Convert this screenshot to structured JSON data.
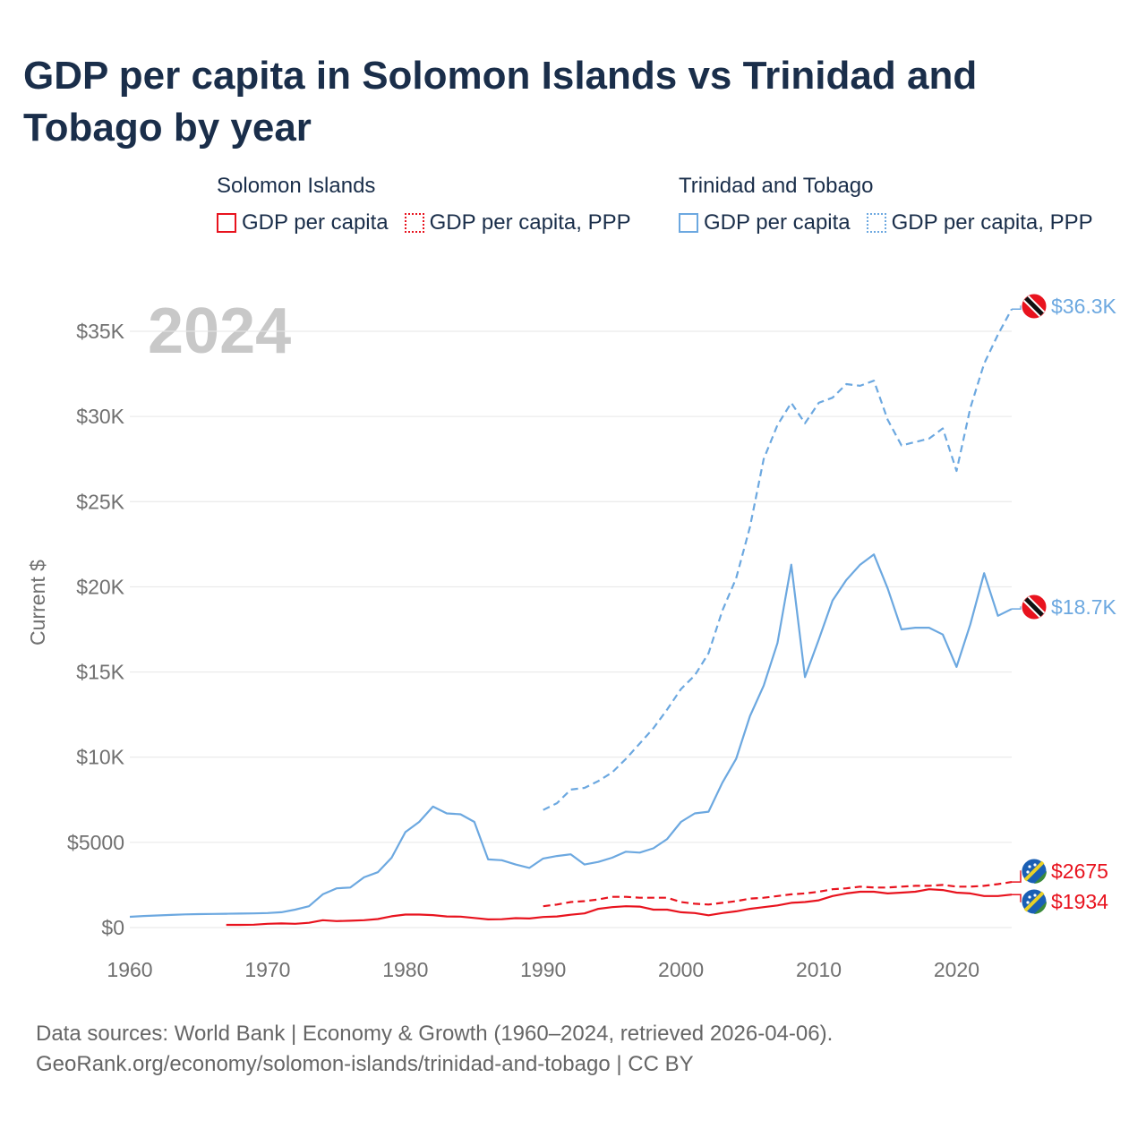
{
  "title": "GDP per capita in Solomon Islands vs Trinidad and Tobago by year",
  "legend": {
    "groups": [
      {
        "name": "Solomon Islands",
        "items": [
          "GDP per capita",
          "GDP per capita, PPP"
        ]
      },
      {
        "name": "Trinidad and Tobago",
        "items": [
          "GDP per capita",
          "GDP per capita, PPP"
        ]
      }
    ]
  },
  "footer": {
    "line1": "Data sources: World Bank | Economy & Growth (1960–2024, retrieved 2026-04-06).",
    "line2": "GeoRank.org/economy/solomon-islands/trinidad-and-tobago | CC BY"
  },
  "colors": {
    "solomon": "#e8131e",
    "trinidad": "#6ca8e0",
    "grid": "#e6e6e6",
    "axis_text": "#707070",
    "year_watermark": "#c8c8c8"
  },
  "chart_data": {
    "type": "line",
    "year_label": "2024",
    "ylabel": "Current $",
    "xlim": [
      1960,
      2024
    ],
    "ylim": [
      0,
      36000
    ],
    "x_ticks": [
      "1960",
      "1970",
      "1980",
      "1990",
      "2000",
      "2010",
      "2020"
    ],
    "y_ticks": [
      {
        "value": 0,
        "label": "$0"
      },
      {
        "value": 5000,
        "label": "$5000"
      },
      {
        "value": 10000,
        "label": "$10K"
      },
      {
        "value": 15000,
        "label": "$15K"
      },
      {
        "value": 20000,
        "label": "$20K"
      },
      {
        "value": 25000,
        "label": "$25K"
      },
      {
        "value": 30000,
        "label": "$30K"
      },
      {
        "value": 35000,
        "label": "$35K"
      }
    ],
    "series": [
      {
        "name": "Trinidad and Tobago GDP per capita, PPP",
        "country": "trinidad",
        "dashed": true,
        "end_label": "$36.3K",
        "x": [
          1990,
          1991,
          1992,
          1993,
          1994,
          1995,
          1996,
          1997,
          1998,
          1999,
          2000,
          2001,
          2002,
          2003,
          2004,
          2005,
          2006,
          2007,
          2008,
          2009,
          2010,
          2011,
          2012,
          2013,
          2014,
          2015,
          2016,
          2017,
          2018,
          2019,
          2020,
          2021,
          2022,
          2023,
          2024
        ],
        "y": [
          6900,
          7300,
          8100,
          8200,
          8600,
          9100,
          9900,
          10800,
          11700,
          12800,
          14000,
          14800,
          16100,
          18600,
          20500,
          23500,
          27500,
          29500,
          30800,
          29600,
          30800,
          31100,
          31900,
          31800,
          32100,
          29800,
          28300,
          28500,
          28700,
          29300,
          26800,
          30500,
          33100,
          34800,
          36300
        ]
      },
      {
        "name": "Trinidad and Tobago GDP per capita",
        "country": "trinidad",
        "dashed": false,
        "end_label": "$18.7K",
        "x": [
          1960,
          1961,
          1962,
          1963,
          1964,
          1965,
          1966,
          1967,
          1968,
          1969,
          1970,
          1971,
          1972,
          1973,
          1974,
          1975,
          1976,
          1977,
          1978,
          1979,
          1980,
          1981,
          1982,
          1983,
          1984,
          1985,
          1986,
          1987,
          1988,
          1989,
          1990,
          1991,
          1992,
          1993,
          1994,
          1995,
          1996,
          1997,
          1998,
          1999,
          2000,
          2001,
          2002,
          2003,
          2004,
          2005,
          2006,
          2007,
          2008,
          2009,
          2010,
          2011,
          2012,
          2013,
          2014,
          2015,
          2016,
          2017,
          2018,
          2019,
          2020,
          2021,
          2022,
          2023,
          2024
        ],
        "y": [
          630,
          680,
          710,
          740,
          770,
          790,
          800,
          810,
          820,
          830,
          850,
          900,
          1050,
          1250,
          1950,
          2300,
          2350,
          2950,
          3250,
          4100,
          5600,
          6200,
          7100,
          6700,
          6650,
          6200,
          4000,
          3950,
          3700,
          3500,
          4050,
          4200,
          4300,
          3700,
          3850,
          4100,
          4450,
          4400,
          4650,
          5200,
          6200,
          6700,
          6800,
          8500,
          9900,
          12400,
          14200,
          16700,
          21300,
          14700,
          16900,
          19200,
          20400,
          21300,
          21900,
          19900,
          17500,
          17600,
          17600,
          17200,
          15300,
          17800,
          20800,
          18300,
          18700
        ]
      },
      {
        "name": "Solomon Islands GDP per capita, PPP",
        "country": "solomon",
        "dashed": true,
        "end_label": "$2675",
        "x": [
          1990,
          1991,
          1992,
          1993,
          1994,
          1995,
          1996,
          1997,
          1998,
          1999,
          2000,
          2001,
          2002,
          2003,
          2004,
          2005,
          2006,
          2007,
          2008,
          2009,
          2010,
          2011,
          2012,
          2013,
          2014,
          2015,
          2016,
          2017,
          2018,
          2019,
          2020,
          2021,
          2022,
          2023,
          2024
        ],
        "y": [
          1250,
          1350,
          1500,
          1550,
          1650,
          1800,
          1800,
          1750,
          1750,
          1750,
          1500,
          1400,
          1350,
          1450,
          1550,
          1700,
          1750,
          1850,
          1950,
          2000,
          2100,
          2250,
          2300,
          2400,
          2350,
          2350,
          2400,
          2450,
          2450,
          2500,
          2400,
          2400,
          2450,
          2550,
          2675
        ]
      },
      {
        "name": "Solomon Islands GDP per capita",
        "country": "solomon",
        "dashed": false,
        "end_label": "$1934",
        "x": [
          1967,
          1968,
          1969,
          1970,
          1971,
          1972,
          1973,
          1974,
          1975,
          1976,
          1977,
          1978,
          1979,
          1980,
          1981,
          1982,
          1983,
          1984,
          1985,
          1986,
          1987,
          1988,
          1989,
          1990,
          1991,
          1992,
          1993,
          1994,
          1995,
          1996,
          1997,
          1998,
          1999,
          2000,
          2001,
          2002,
          2003,
          2004,
          2005,
          2006,
          2007,
          2008,
          2009,
          2010,
          2011,
          2012,
          2013,
          2014,
          2015,
          2016,
          2017,
          2018,
          2019,
          2020,
          2021,
          2022,
          2023,
          2024
        ],
        "y": [
          160,
          160,
          170,
          220,
          240,
          220,
          280,
          430,
          380,
          400,
          430,
          500,
          660,
          760,
          760,
          730,
          650,
          640,
          560,
          480,
          490,
          550,
          530,
          620,
          650,
          750,
          830,
          1100,
          1200,
          1250,
          1230,
          1050,
          1050,
          900,
          850,
          720,
          850,
          950,
          1100,
          1200,
          1300,
          1450,
          1500,
          1600,
          1850,
          2000,
          2100,
          2100,
          2000,
          2050,
          2100,
          2250,
          2200,
          2050,
          2000,
          1850,
          1850,
          1934
        ]
      }
    ]
  }
}
